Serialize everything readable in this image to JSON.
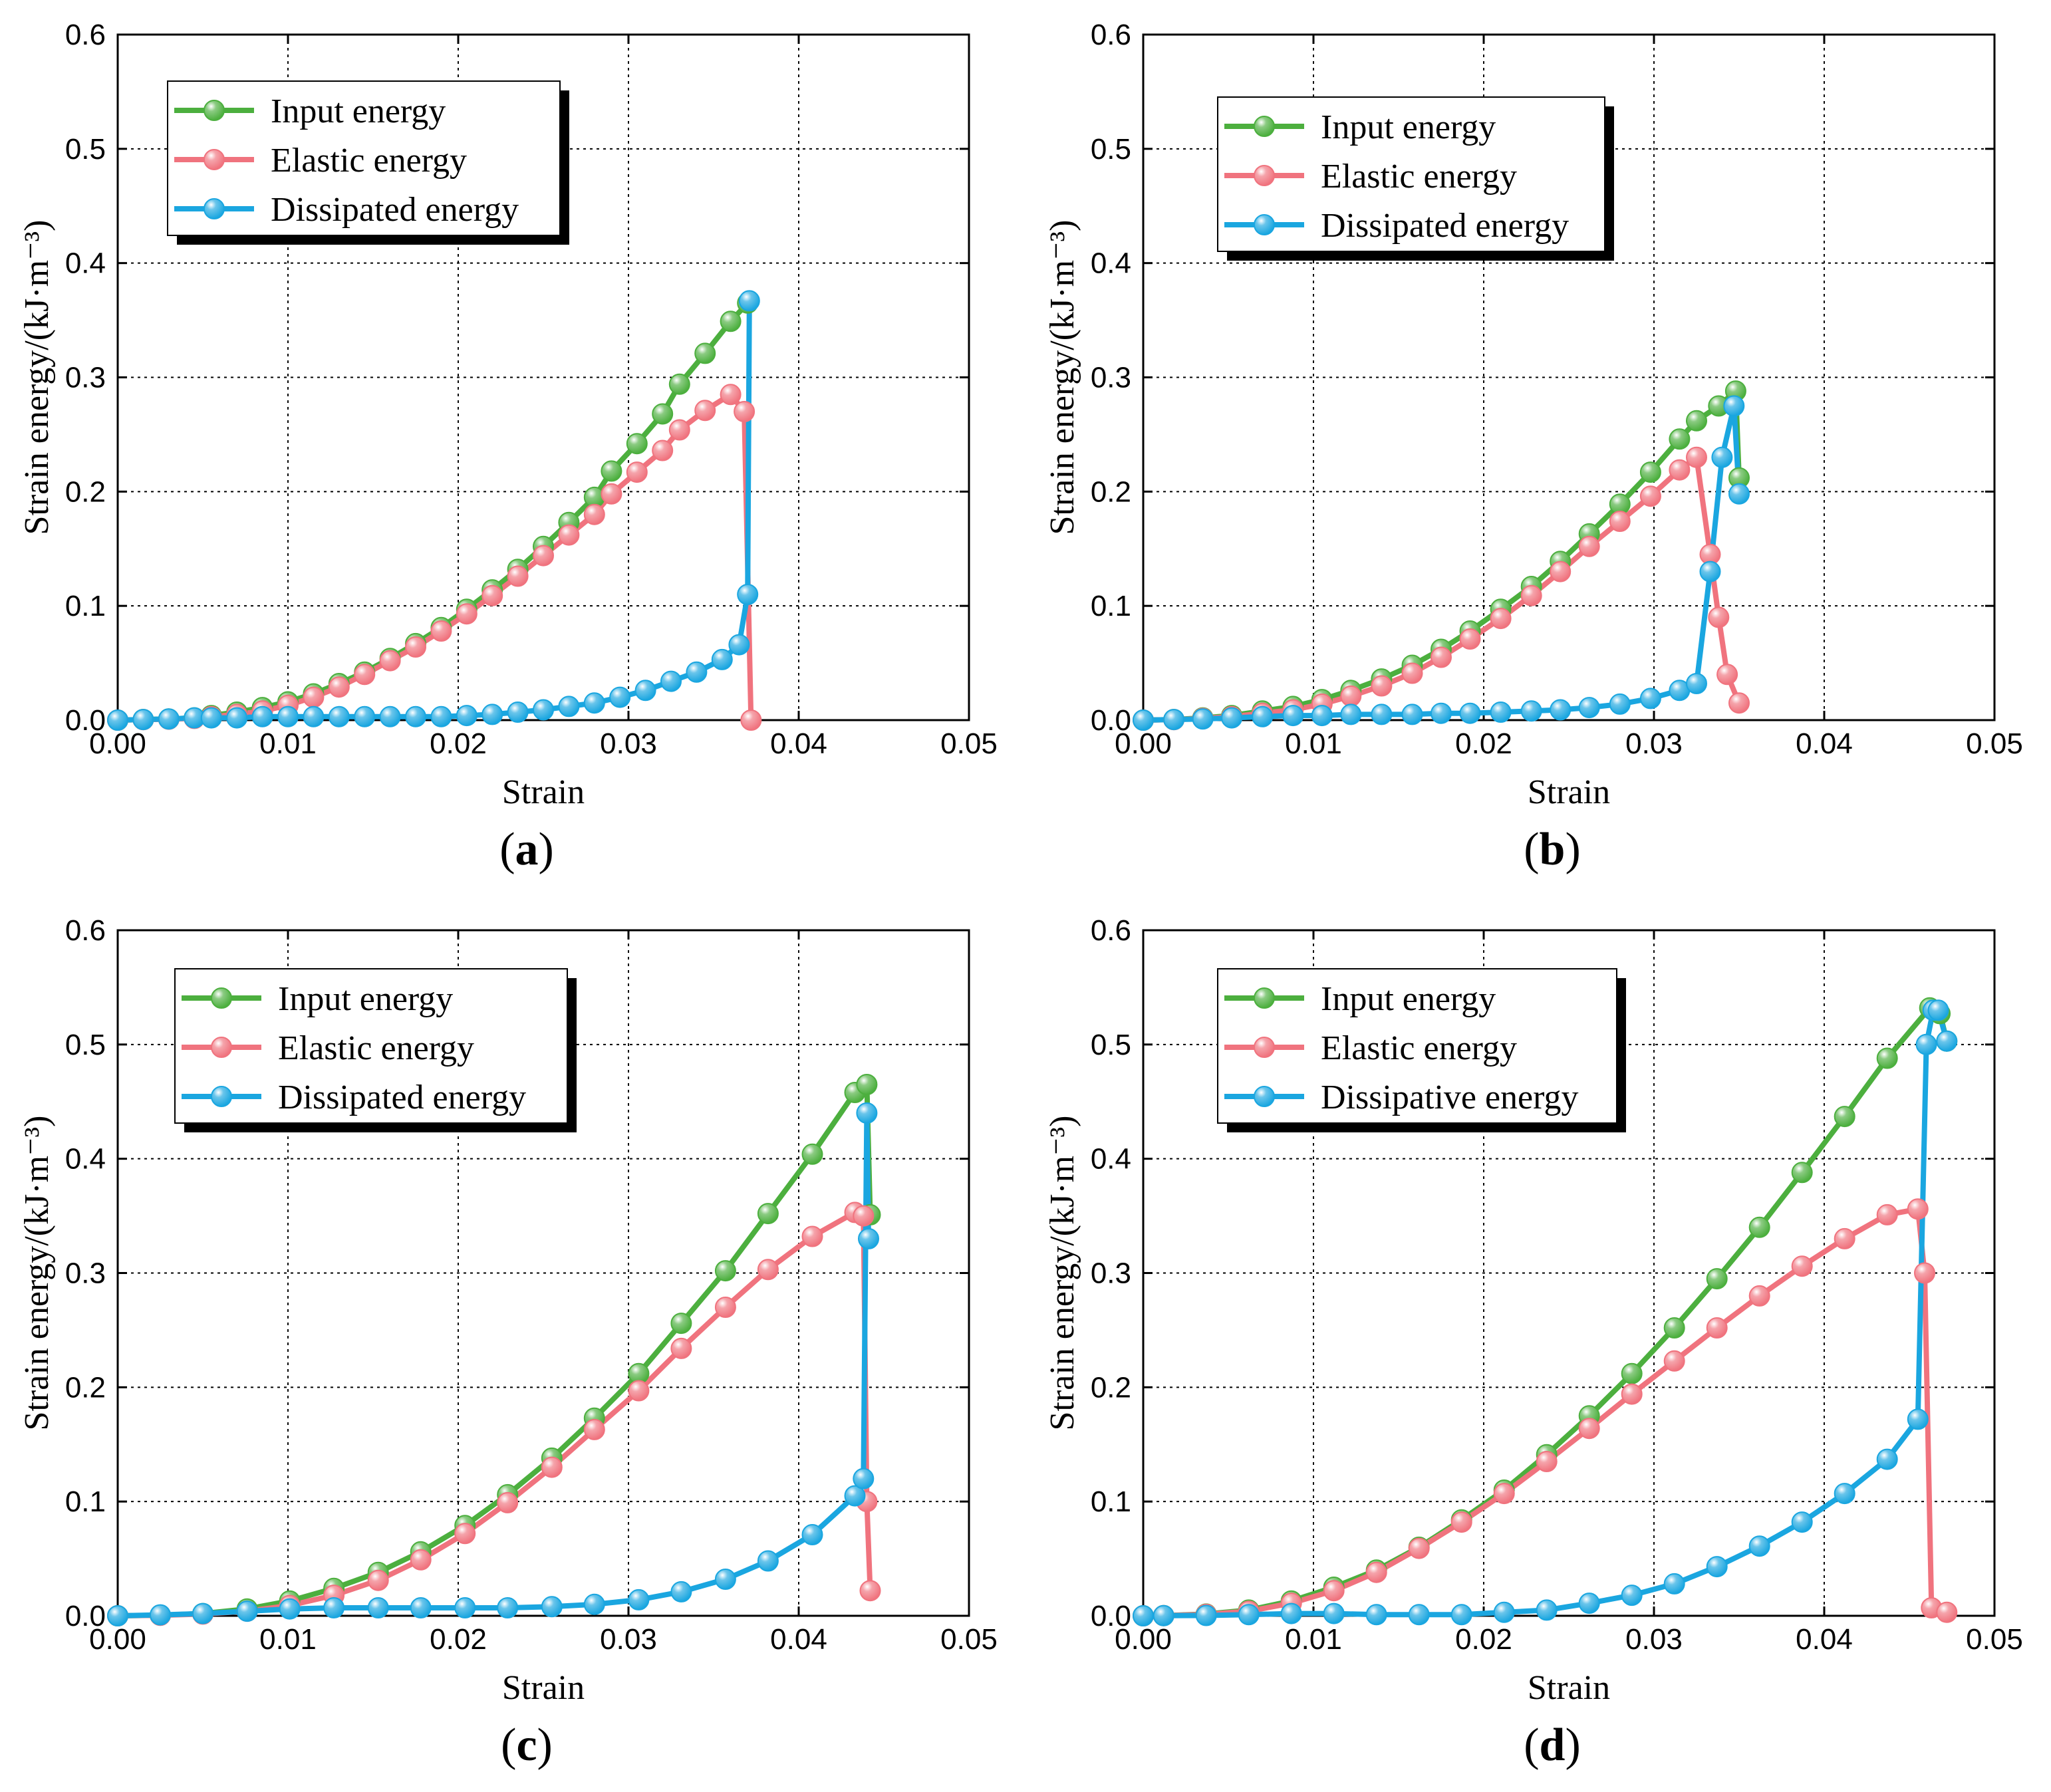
{
  "figure": {
    "colors": {
      "input": "#4caf3e",
      "elastic": "#f0737e",
      "dissipated": "#1aa6e0"
    },
    "marker_style": "sphere"
  },
  "chart_data": [
    {
      "type": "line",
      "panel_label": "a",
      "xlabel": "Strain",
      "ylabel": "Strain energy/(kJ·m⁻³)",
      "xlim": [
        0,
        0.05
      ],
      "ylim": [
        0,
        0.6
      ],
      "xticks": [
        "0.00",
        "0.01",
        "0.02",
        "0.03",
        "0.04",
        "0.05"
      ],
      "yticks": [
        "0.0",
        "0.1",
        "0.2",
        "0.3",
        "0.4",
        "0.5",
        "0.6"
      ],
      "grid": true,
      "legend_position": "top-left",
      "series": [
        {
          "name": "Input energy",
          "color": "#4caf3e",
          "x": [
            0,
            0.0015,
            0.003,
            0.0045,
            0.0055,
            0.007,
            0.0085,
            0.01,
            0.0115,
            0.013,
            0.0145,
            0.016,
            0.0175,
            0.019,
            0.0205,
            0.022,
            0.0235,
            0.025,
            0.0265,
            0.028,
            0.029,
            0.0305,
            0.032,
            0.033,
            0.0345,
            0.036,
            0.037
          ],
          "y": [
            0,
            0.0005,
            0.001,
            0.002,
            0.004,
            0.007,
            0.011,
            0.016,
            0.023,
            0.032,
            0.042,
            0.054,
            0.067,
            0.081,
            0.097,
            0.114,
            0.132,
            0.152,
            0.173,
            0.195,
            0.218,
            0.242,
            0.268,
            0.294,
            0.321,
            0.349,
            0.365
          ]
        },
        {
          "name": "Elastic energy",
          "color": "#f0737e",
          "x": [
            0,
            0.0015,
            0.003,
            0.0045,
            0.0055,
            0.007,
            0.0085,
            0.01,
            0.0115,
            0.013,
            0.0145,
            0.016,
            0.0175,
            0.019,
            0.0205,
            0.022,
            0.0235,
            0.025,
            0.0265,
            0.028,
            0.029,
            0.0305,
            0.032,
            0.033,
            0.0345,
            0.036,
            0.0368,
            0.0372
          ],
          "y": [
            0,
            0.0004,
            0.0008,
            0.0015,
            0.003,
            0.005,
            0.008,
            0.013,
            0.02,
            0.029,
            0.04,
            0.052,
            0.064,
            0.078,
            0.093,
            0.109,
            0.126,
            0.144,
            0.162,
            0.18,
            0.198,
            0.217,
            0.236,
            0.254,
            0.271,
            0.285,
            0.27,
            0
          ]
        },
        {
          "name": "Dissipated energy",
          "color": "#1aa6e0",
          "x": [
            0,
            0.0015,
            0.003,
            0.0045,
            0.0055,
            0.007,
            0.0085,
            0.01,
            0.0115,
            0.013,
            0.0145,
            0.016,
            0.0175,
            0.019,
            0.0205,
            0.022,
            0.0235,
            0.025,
            0.0265,
            0.028,
            0.0295,
            0.031,
            0.0325,
            0.034,
            0.0355,
            0.0365,
            0.037,
            0.0371
          ],
          "y": [
            0,
            0.0005,
            0.001,
            0.002,
            0.002,
            0.002,
            0.003,
            0.003,
            0.003,
            0.003,
            0.003,
            0.003,
            0.003,
            0.003,
            0.004,
            0.005,
            0.007,
            0.009,
            0.012,
            0.015,
            0.02,
            0.026,
            0.034,
            0.042,
            0.053,
            0.066,
            0.11,
            0.367
          ]
        }
      ]
    },
    {
      "type": "line",
      "panel_label": "b",
      "xlabel": "Strain",
      "ylabel": "Strain energy/(kJ·m⁻³)",
      "xlim": [
        0,
        0.05
      ],
      "ylim": [
        0,
        0.6
      ],
      "xticks": [
        "0.00",
        "0.01",
        "0.02",
        "0.03",
        "0.04",
        "0.05"
      ],
      "yticks": [
        "0.0",
        "0.1",
        "0.2",
        "0.3",
        "0.4",
        "0.5",
        "0.6"
      ],
      "grid": true,
      "legend_position": "top-left",
      "series": [
        {
          "name": "Input energy",
          "color": "#4caf3e",
          "x": [
            0,
            0.0018,
            0.0035,
            0.0052,
            0.007,
            0.0088,
            0.0105,
            0.0122,
            0.014,
            0.0158,
            0.0175,
            0.0192,
            0.021,
            0.0228,
            0.0245,
            0.0262,
            0.028,
            0.0298,
            0.0315,
            0.0325,
            0.0338,
            0.0348,
            0.035
          ],
          "y": [
            0,
            0.0005,
            0.002,
            0.004,
            0.008,
            0.012,
            0.018,
            0.026,
            0.036,
            0.048,
            0.062,
            0.078,
            0.097,
            0.117,
            0.139,
            0.163,
            0.189,
            0.217,
            0.246,
            0.262,
            0.275,
            0.288,
            0.212
          ]
        },
        {
          "name": "Elastic energy",
          "color": "#f0737e",
          "x": [
            0,
            0.0018,
            0.0035,
            0.0052,
            0.007,
            0.0088,
            0.0105,
            0.0122,
            0.014,
            0.0158,
            0.0175,
            0.0192,
            0.021,
            0.0228,
            0.0245,
            0.0262,
            0.028,
            0.0298,
            0.0315,
            0.0325,
            0.0333,
            0.0338,
            0.0343,
            0.035
          ],
          "y": [
            0,
            0.0004,
            0.0015,
            0.003,
            0.006,
            0.009,
            0.014,
            0.021,
            0.03,
            0.041,
            0.055,
            0.071,
            0.089,
            0.109,
            0.13,
            0.152,
            0.174,
            0.196,
            0.219,
            0.23,
            0.145,
            0.09,
            0.04,
            0.015
          ]
        },
        {
          "name": "Dissipated energy",
          "color": "#1aa6e0",
          "x": [
            0,
            0.0018,
            0.0035,
            0.0052,
            0.007,
            0.0088,
            0.0105,
            0.0122,
            0.014,
            0.0158,
            0.0175,
            0.0192,
            0.021,
            0.0228,
            0.0245,
            0.0262,
            0.028,
            0.0298,
            0.0315,
            0.0325,
            0.0333,
            0.034,
            0.0347,
            0.035
          ],
          "y": [
            0,
            0.0005,
            0.001,
            0.002,
            0.003,
            0.004,
            0.004,
            0.005,
            0.005,
            0.005,
            0.006,
            0.006,
            0.007,
            0.008,
            0.009,
            0.011,
            0.014,
            0.019,
            0.026,
            0.032,
            0.13,
            0.23,
            0.275,
            0.198
          ]
        }
      ]
    },
    {
      "type": "line",
      "panel_label": "c",
      "xlabel": "Strain",
      "ylabel": "Strain energy/(kJ·m⁻³)",
      "xlim": [
        0,
        0.05
      ],
      "ylim": [
        0,
        0.6
      ],
      "xticks": [
        "0.00",
        "0.01",
        "0.02",
        "0.03",
        "0.04",
        "0.05"
      ],
      "yticks": [
        "0.0",
        "0.1",
        "0.2",
        "0.3",
        "0.4",
        "0.5",
        "0.6"
      ],
      "grid": true,
      "legend_position": "top-left",
      "series": [
        {
          "name": "Input energy",
          "color": "#4caf3e",
          "x": [
            0,
            0.0025,
            0.005,
            0.0076,
            0.0101,
            0.0127,
            0.0153,
            0.0178,
            0.0204,
            0.0229,
            0.0255,
            0.028,
            0.0306,
            0.0331,
            0.0357,
            0.0382,
            0.0408,
            0.0433,
            0.044,
            0.0442
          ],
          "y": [
            0,
            0.0005,
            0.002,
            0.006,
            0.013,
            0.024,
            0.038,
            0.056,
            0.079,
            0.106,
            0.138,
            0.173,
            0.212,
            0.256,
            0.302,
            0.352,
            0.404,
            0.458,
            0.465,
            0.351
          ]
        },
        {
          "name": "Elastic energy",
          "color": "#f0737e",
          "x": [
            0,
            0.0025,
            0.005,
            0.0076,
            0.0101,
            0.0127,
            0.0153,
            0.0178,
            0.0204,
            0.0229,
            0.0255,
            0.028,
            0.0306,
            0.0331,
            0.0357,
            0.0382,
            0.0408,
            0.0433,
            0.0438,
            0.044,
            0.0442
          ],
          "y": [
            0,
            0.0004,
            0.0015,
            0.004,
            0.009,
            0.018,
            0.031,
            0.049,
            0.072,
            0.099,
            0.13,
            0.163,
            0.197,
            0.234,
            0.27,
            0.303,
            0.332,
            0.353,
            0.35,
            0.1,
            0.022
          ]
        },
        {
          "name": "Dissipated energy",
          "color": "#1aa6e0",
          "x": [
            0,
            0.0025,
            0.005,
            0.0076,
            0.0101,
            0.0127,
            0.0153,
            0.0178,
            0.0204,
            0.0229,
            0.0255,
            0.028,
            0.0306,
            0.0331,
            0.0357,
            0.0382,
            0.0408,
            0.0433,
            0.0438,
            0.044,
            0.0441
          ],
          "y": [
            0,
            0.0008,
            0.002,
            0.004,
            0.006,
            0.007,
            0.007,
            0.007,
            0.007,
            0.007,
            0.008,
            0.01,
            0.014,
            0.021,
            0.032,
            0.048,
            0.071,
            0.105,
            0.12,
            0.44,
            0.33
          ]
        }
      ]
    },
    {
      "type": "line",
      "panel_label": "d",
      "xlabel": "Strain",
      "ylabel": "Strain energy/(kJ·m⁻³)",
      "xlim": [
        0,
        0.05
      ],
      "ylim": [
        0,
        0.6
      ],
      "xticks": [
        "0.00",
        "0.01",
        "0.02",
        "0.03",
        "0.04",
        "0.05"
      ],
      "yticks": [
        "0.0",
        "0.1",
        "0.2",
        "0.3",
        "0.4",
        "0.5",
        "0.6"
      ],
      "grid": true,
      "legend_position": "top-left",
      "series": [
        {
          "name": "Input energy",
          "color": "#4caf3e",
          "x": [
            0,
            0.0012,
            0.0037,
            0.0062,
            0.0087,
            0.0112,
            0.0137,
            0.0162,
            0.0187,
            0.0212,
            0.0237,
            0.0262,
            0.0287,
            0.0312,
            0.0337,
            0.0362,
            0.0387,
            0.0412,
            0.0437,
            0.0462,
            0.0468,
            0.0472
          ],
          "y": [
            0,
            0.0002,
            0.0015,
            0.005,
            0.013,
            0.025,
            0.04,
            0.06,
            0.084,
            0.11,
            0.141,
            0.175,
            0.212,
            0.252,
            0.295,
            0.34,
            0.388,
            0.437,
            0.488,
            0.532,
            0.527,
            0.503
          ]
        },
        {
          "name": "Elastic energy",
          "color": "#f0737e",
          "x": [
            0,
            0.0012,
            0.0037,
            0.0062,
            0.0087,
            0.0112,
            0.0137,
            0.0162,
            0.0187,
            0.0212,
            0.0237,
            0.0262,
            0.0287,
            0.0312,
            0.0337,
            0.0362,
            0.0387,
            0.0412,
            0.0437,
            0.0455,
            0.0459,
            0.0463,
            0.0472
          ],
          "y": [
            0,
            0.0002,
            0.0012,
            0.004,
            0.011,
            0.022,
            0.038,
            0.059,
            0.082,
            0.107,
            0.135,
            0.164,
            0.194,
            0.223,
            0.252,
            0.28,
            0.306,
            0.33,
            0.351,
            0.356,
            0.3,
            0.007,
            0.003
          ]
        },
        {
          "name": "Dissipative energy",
          "color": "#1aa6e0",
          "x": [
            0,
            0.0012,
            0.0037,
            0.0062,
            0.0087,
            0.0112,
            0.0137,
            0.0162,
            0.0187,
            0.0212,
            0.0237,
            0.0262,
            0.0287,
            0.0312,
            0.0337,
            0.0362,
            0.0387,
            0.0412,
            0.0437,
            0.0455,
            0.046,
            0.0464,
            0.0467,
            0.0472
          ],
          "y": [
            0,
            0.0001,
            0.0003,
            0.001,
            0.002,
            0.002,
            0.001,
            0.001,
            0.001,
            0.003,
            0.005,
            0.011,
            0.018,
            0.028,
            0.043,
            0.061,
            0.082,
            0.107,
            0.137,
            0.172,
            0.5,
            0.53,
            0.53,
            0.503
          ]
        }
      ]
    }
  ]
}
